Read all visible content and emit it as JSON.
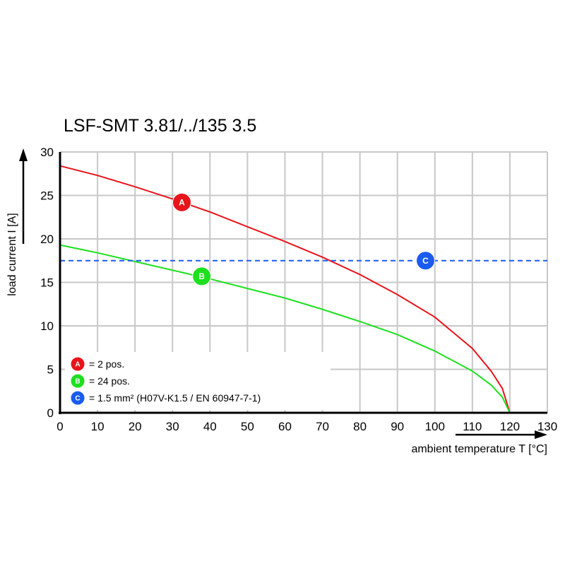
{
  "chart_data": {
    "type": "line",
    "title": "LSF-SMT 3.81/../135 3.5",
    "xlabel": "ambient temperature T [°C]",
    "ylabel": "load current I [A]",
    "xlim": [
      0,
      130
    ],
    "ylim": [
      0,
      30
    ],
    "xticks": [
      0,
      10,
      20,
      30,
      40,
      50,
      60,
      70,
      80,
      90,
      100,
      110,
      120,
      130
    ],
    "yticks": [
      0,
      5,
      10,
      15,
      20,
      25,
      30
    ],
    "grid": true,
    "legend_placement": "bottom-left",
    "series": [
      {
        "marker": "A",
        "color": "#e8141b",
        "x": [
          0,
          10,
          20,
          30,
          40,
          50,
          60,
          70,
          80,
          90,
          100,
          110,
          115,
          118,
          120
        ],
        "y": [
          28.4,
          27.3,
          26.0,
          24.6,
          23.1,
          21.4,
          19.7,
          17.9,
          15.9,
          13.6,
          11.0,
          7.4,
          4.8,
          2.8,
          0
        ]
      },
      {
        "marker": "B",
        "color": "#1ee01e",
        "x": [
          0,
          10,
          20,
          30,
          40,
          50,
          60,
          70,
          80,
          90,
          100,
          110,
          115,
          118,
          120
        ],
        "y": [
          19.3,
          18.4,
          17.4,
          16.4,
          15.4,
          14.3,
          13.2,
          11.9,
          10.5,
          9.0,
          7.1,
          4.8,
          3.2,
          1.8,
          0
        ]
      },
      {
        "marker": "C",
        "color": "#1a5cf0",
        "style": "dashed",
        "x": [
          0,
          130
        ],
        "y": [
          17.5,
          17.5
        ]
      }
    ],
    "markers": [
      {
        "label": "A",
        "x": 32.5,
        "y": 24.2,
        "color": "#e8141b"
      },
      {
        "label": "B",
        "x": 37.8,
        "y": 15.7,
        "color": "#1ee01e"
      },
      {
        "label": "C",
        "x": 97.5,
        "y": 17.5,
        "color": "#1a5cf0"
      }
    ],
    "legend": [
      {
        "marker": "A",
        "text": "= 2 pos.",
        "color": "#e8141b"
      },
      {
        "marker": "B",
        "text": "= 24 pos.",
        "color": "#1ee01e"
      },
      {
        "marker": "C",
        "text": "= 1.5 mm² (H07V-K1.5 / EN 60947-7-1)",
        "color": "#1a5cf0"
      }
    ]
  }
}
